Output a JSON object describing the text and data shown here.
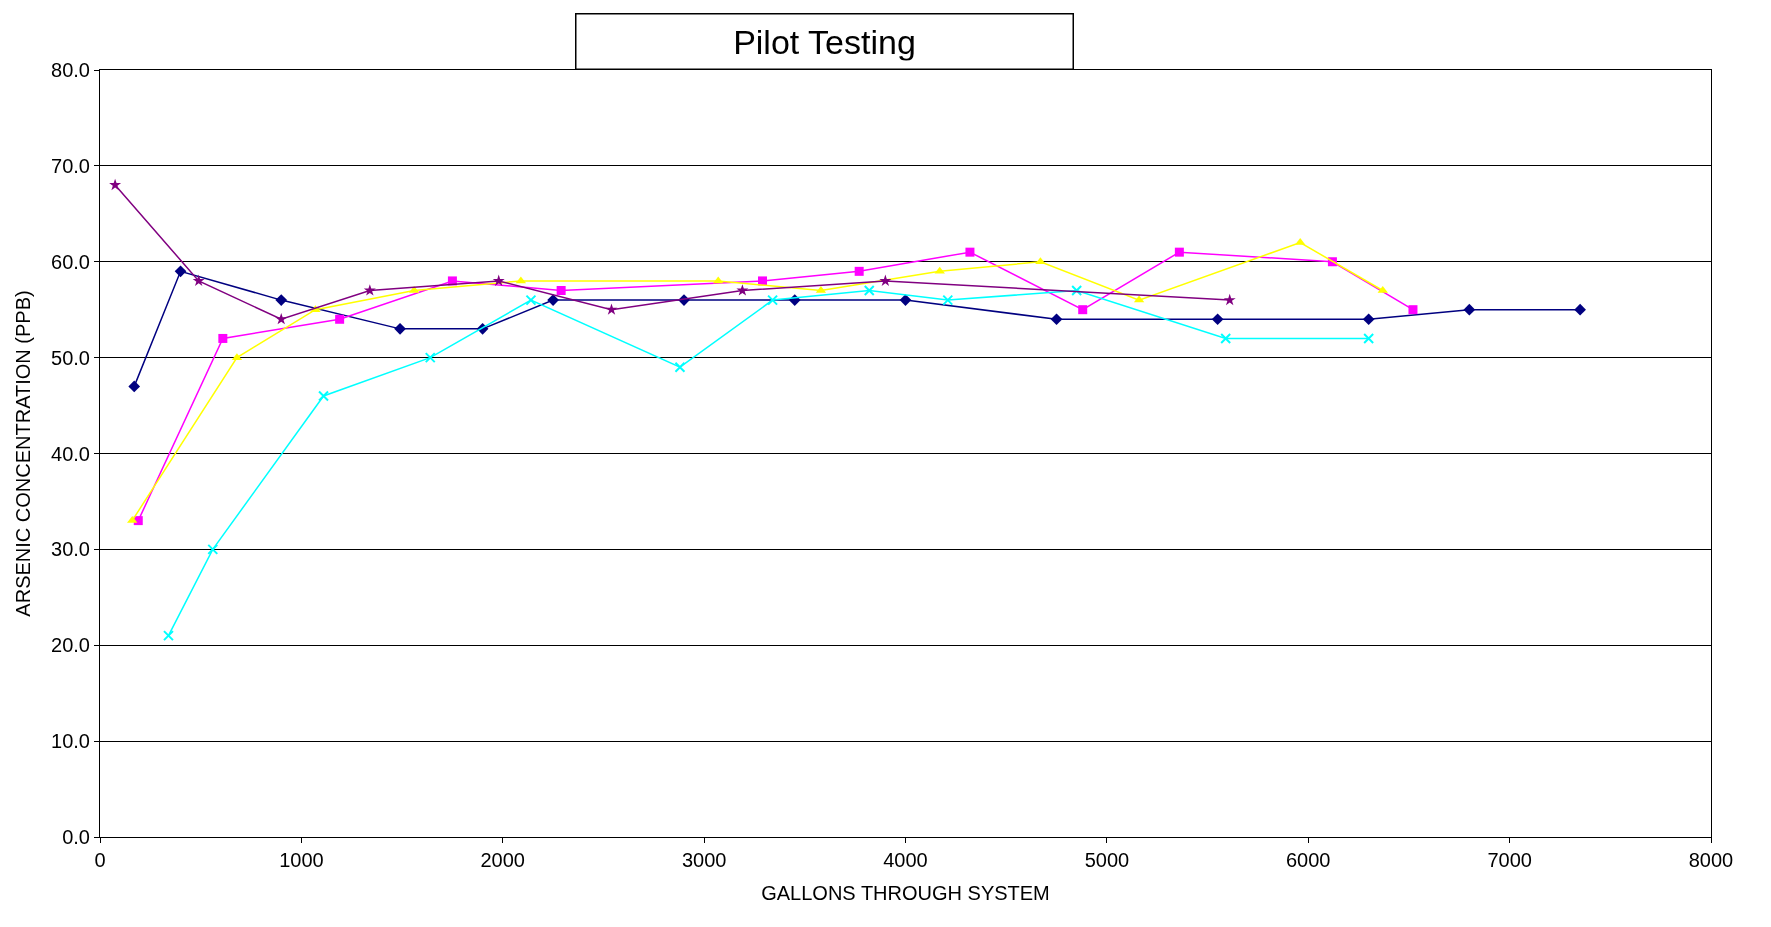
{
  "chart_data": {
    "type": "line",
    "title": "Pilot Testing",
    "xlabel": "GALLONS THROUGH SYSTEM",
    "ylabel": "ARSENIC CONCENTRATION (PPB)",
    "xlim": [
      0,
      8000
    ],
    "xticks": [
      0,
      1000,
      2000,
      3000,
      4000,
      5000,
      6000,
      7000,
      8000
    ],
    "ylim": [
      0,
      80
    ],
    "yticks": [
      {
        "value": 0,
        "label": "0.0"
      },
      {
        "value": 10,
        "label": "10.0"
      },
      {
        "value": 20,
        "label": "20.0"
      },
      {
        "value": 30,
        "label": "30.0"
      },
      {
        "value": 40,
        "label": "40.0"
      },
      {
        "value": 50,
        "label": "50.0"
      },
      {
        "value": 60,
        "label": "60.0"
      },
      {
        "value": 70,
        "label": "70.0"
      },
      {
        "value": 80,
        "label": "80.0"
      }
    ],
    "grid": "y",
    "series": [
      {
        "color": "#000080",
        "marker": "diamond",
        "x": [
          170,
          400,
          900,
          1490,
          1900,
          2250,
          2900,
          3450,
          4000,
          4750,
          5550,
          6300,
          6800,
          7350
        ],
        "values": [
          47,
          59,
          56,
          53,
          53,
          56,
          56,
          56,
          56,
          54,
          54,
          54,
          55,
          55
        ]
      },
      {
        "color": "#ff00ff",
        "marker": "square",
        "x": [
          190,
          610,
          1190,
          1750,
          2290,
          3290,
          3770,
          4320,
          4880,
          5360,
          6120,
          6520
        ],
        "values": [
          33,
          52,
          54,
          58,
          57,
          58,
          59,
          61,
          55,
          61,
          60,
          55
        ]
      },
      {
        "color": "#ffff00",
        "marker": "triangle",
        "x": [
          160,
          680,
          1070,
          1560,
          2090,
          3070,
          3580,
          4170,
          4670,
          5160,
          5960,
          6370
        ],
        "values": [
          33,
          50,
          55,
          57,
          58,
          58,
          57,
          59,
          60,
          56,
          62,
          57
        ]
      },
      {
        "color": "#00ffff",
        "marker": "cross",
        "x": [
          340,
          560,
          1110,
          1640,
          2140,
          2880,
          3340,
          3820,
          4210,
          4850,
          5590,
          6300
        ],
        "values": [
          21,
          30,
          46,
          50,
          56,
          49,
          56,
          57,
          56,
          57,
          52,
          52
        ]
      },
      {
        "color": "#800080",
        "marker": "star",
        "x": [
          75,
          490,
          900,
          1340,
          1980,
          2540,
          3190,
          3900,
          5610
        ],
        "values": [
          68,
          58,
          54,
          57,
          58,
          55,
          57,
          58,
          56
        ]
      }
    ]
  }
}
